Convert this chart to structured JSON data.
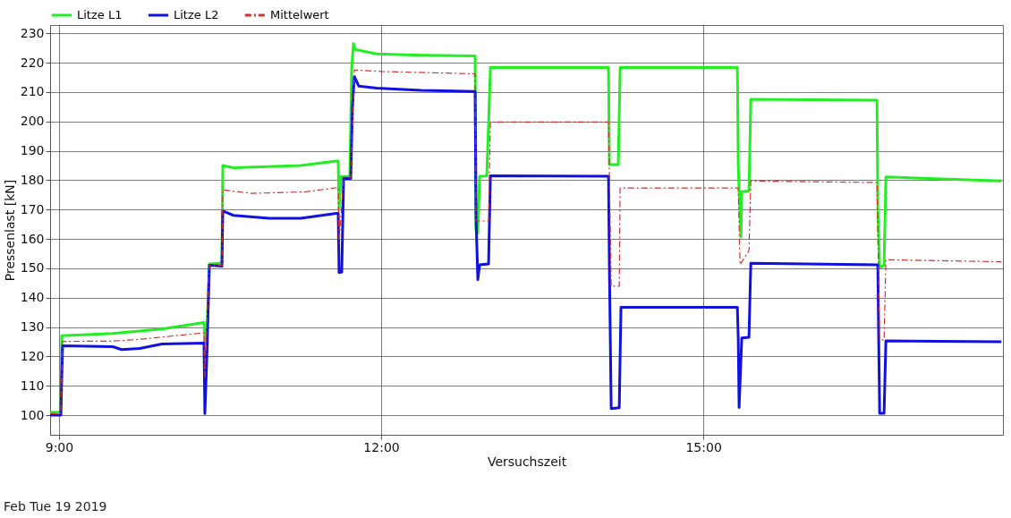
{
  "chart_data": {
    "type": "line",
    "xlabel": "Versuchszeit",
    "ylabel": "Pressenlast [kN]",
    "xlim": [
      8.917,
      17.79
    ],
    "ylim": [
      93.3,
      232.8
    ],
    "xticks": [
      {
        "value": 9,
        "label": "9:00"
      },
      {
        "value": 12,
        "label": "12:00"
      },
      {
        "value": 15,
        "label": "15:00"
      }
    ],
    "yticks": [
      100,
      110,
      120,
      130,
      140,
      150,
      160,
      170,
      180,
      190,
      200,
      210,
      220,
      230
    ],
    "grid": true,
    "legend": "top left",
    "marker": "none",
    "annotations": [
      "Feb Tue 19 2019"
    ],
    "series": [
      {
        "name": "Litze L1",
        "color": "#22ee22",
        "line_style": "solid",
        "x": [
          8.917,
          9.017,
          9.025,
          9.5,
          9.958,
          10.35,
          10.358,
          10.375,
          10.4,
          10.5,
          10.517,
          10.525,
          10.625,
          11.25,
          11.583,
          11.6,
          11.608,
          11.625,
          11.708,
          11.725,
          11.742,
          11.758,
          11.958,
          12.375,
          12.875,
          12.883,
          12.9,
          12.917,
          12.983,
          13.0,
          13.017,
          14.117,
          14.125,
          14.208,
          14.225,
          15.317,
          15.325,
          15.35,
          15.358,
          15.425,
          15.442,
          16.617,
          16.625,
          16.642,
          16.683,
          16.7,
          17.775
        ],
        "values": [
          101,
          101,
          127,
          127.8,
          129.3,
          131.5,
          125,
          126,
          151.5,
          151.7,
          151.3,
          185,
          184.2,
          185,
          186.5,
          186.5,
          170,
          181.2,
          181.3,
          218,
          226.5,
          224.5,
          223,
          222.5,
          222.3,
          163,
          162,
          181.3,
          181.4,
          199,
          218.3,
          218.3,
          185.3,
          185.3,
          218.3,
          218.3,
          185,
          160.6,
          176.1,
          176.3,
          207.5,
          207.2,
          170,
          150.3,
          151,
          181.1,
          179.7
        ]
      },
      {
        "name": "Litze L2",
        "color": "#1010e0",
        "line_style": "solid",
        "x": [
          8.917,
          9.017,
          9.033,
          9.5,
          9.583,
          9.75,
          9.958,
          10.35,
          10.358,
          10.375,
          10.4,
          10.517,
          10.525,
          10.625,
          10.958,
          11.25,
          11.583,
          11.6,
          11.608,
          11.633,
          11.65,
          11.717,
          11.733,
          11.75,
          11.792,
          11.958,
          12.375,
          12.875,
          12.883,
          12.9,
          12.917,
          13.0,
          13.017,
          14.117,
          14.125,
          14.142,
          14.217,
          14.233,
          15.317,
          15.325,
          15.333,
          15.358,
          15.425,
          15.442,
          16.625,
          16.633,
          16.642,
          16.683,
          16.7,
          17.775
        ],
        "values": [
          100,
          100,
          123.6,
          123.3,
          122.3,
          122.7,
          124.2,
          124.5,
          100.5,
          118,
          151,
          150.7,
          169.5,
          168,
          167,
          167,
          168.7,
          168.7,
          148.5,
          148.7,
          180.6,
          180.6,
          205,
          215.3,
          212,
          211.3,
          210.6,
          210.2,
          167.5,
          146.1,
          151.2,
          151.5,
          181.5,
          181.3,
          150.6,
          102.2,
          102.5,
          136.7,
          136.7,
          126.2,
          102.6,
          126.3,
          126.5,
          151.7,
          151.2,
          125.7,
          100.6,
          100.6,
          125.3,
          125
        ]
      },
      {
        "name": "Mittelwert",
        "color": "#d03030",
        "line_style": "dashed",
        "x": [
          8.917,
          9.017,
          9.033,
          9.5,
          9.75,
          10.35,
          10.358,
          10.4,
          10.517,
          10.525,
          10.792,
          11.292,
          11.6,
          11.608,
          11.65,
          11.717,
          11.75,
          12.0,
          12.875,
          12.883,
          13.0,
          13.017,
          14.117,
          14.142,
          14.217,
          14.225,
          15.325,
          15.342,
          15.425,
          15.442,
          16.617,
          16.642,
          16.683,
          16.7,
          17.775
        ],
        "values": [
          100.5,
          100.5,
          125.1,
          125.2,
          125.8,
          128,
          113,
          151,
          151,
          176.7,
          175.5,
          176,
          177.5,
          158.5,
          181,
          181,
          217.5,
          217,
          216.2,
          166.1,
          166.1,
          199.8,
          199.8,
          143.9,
          143.9,
          177.3,
          177.3,
          151.2,
          156,
          179.7,
          179.2,
          125.6,
          125.6,
          152.9,
          152.2
        ]
      }
    ]
  }
}
